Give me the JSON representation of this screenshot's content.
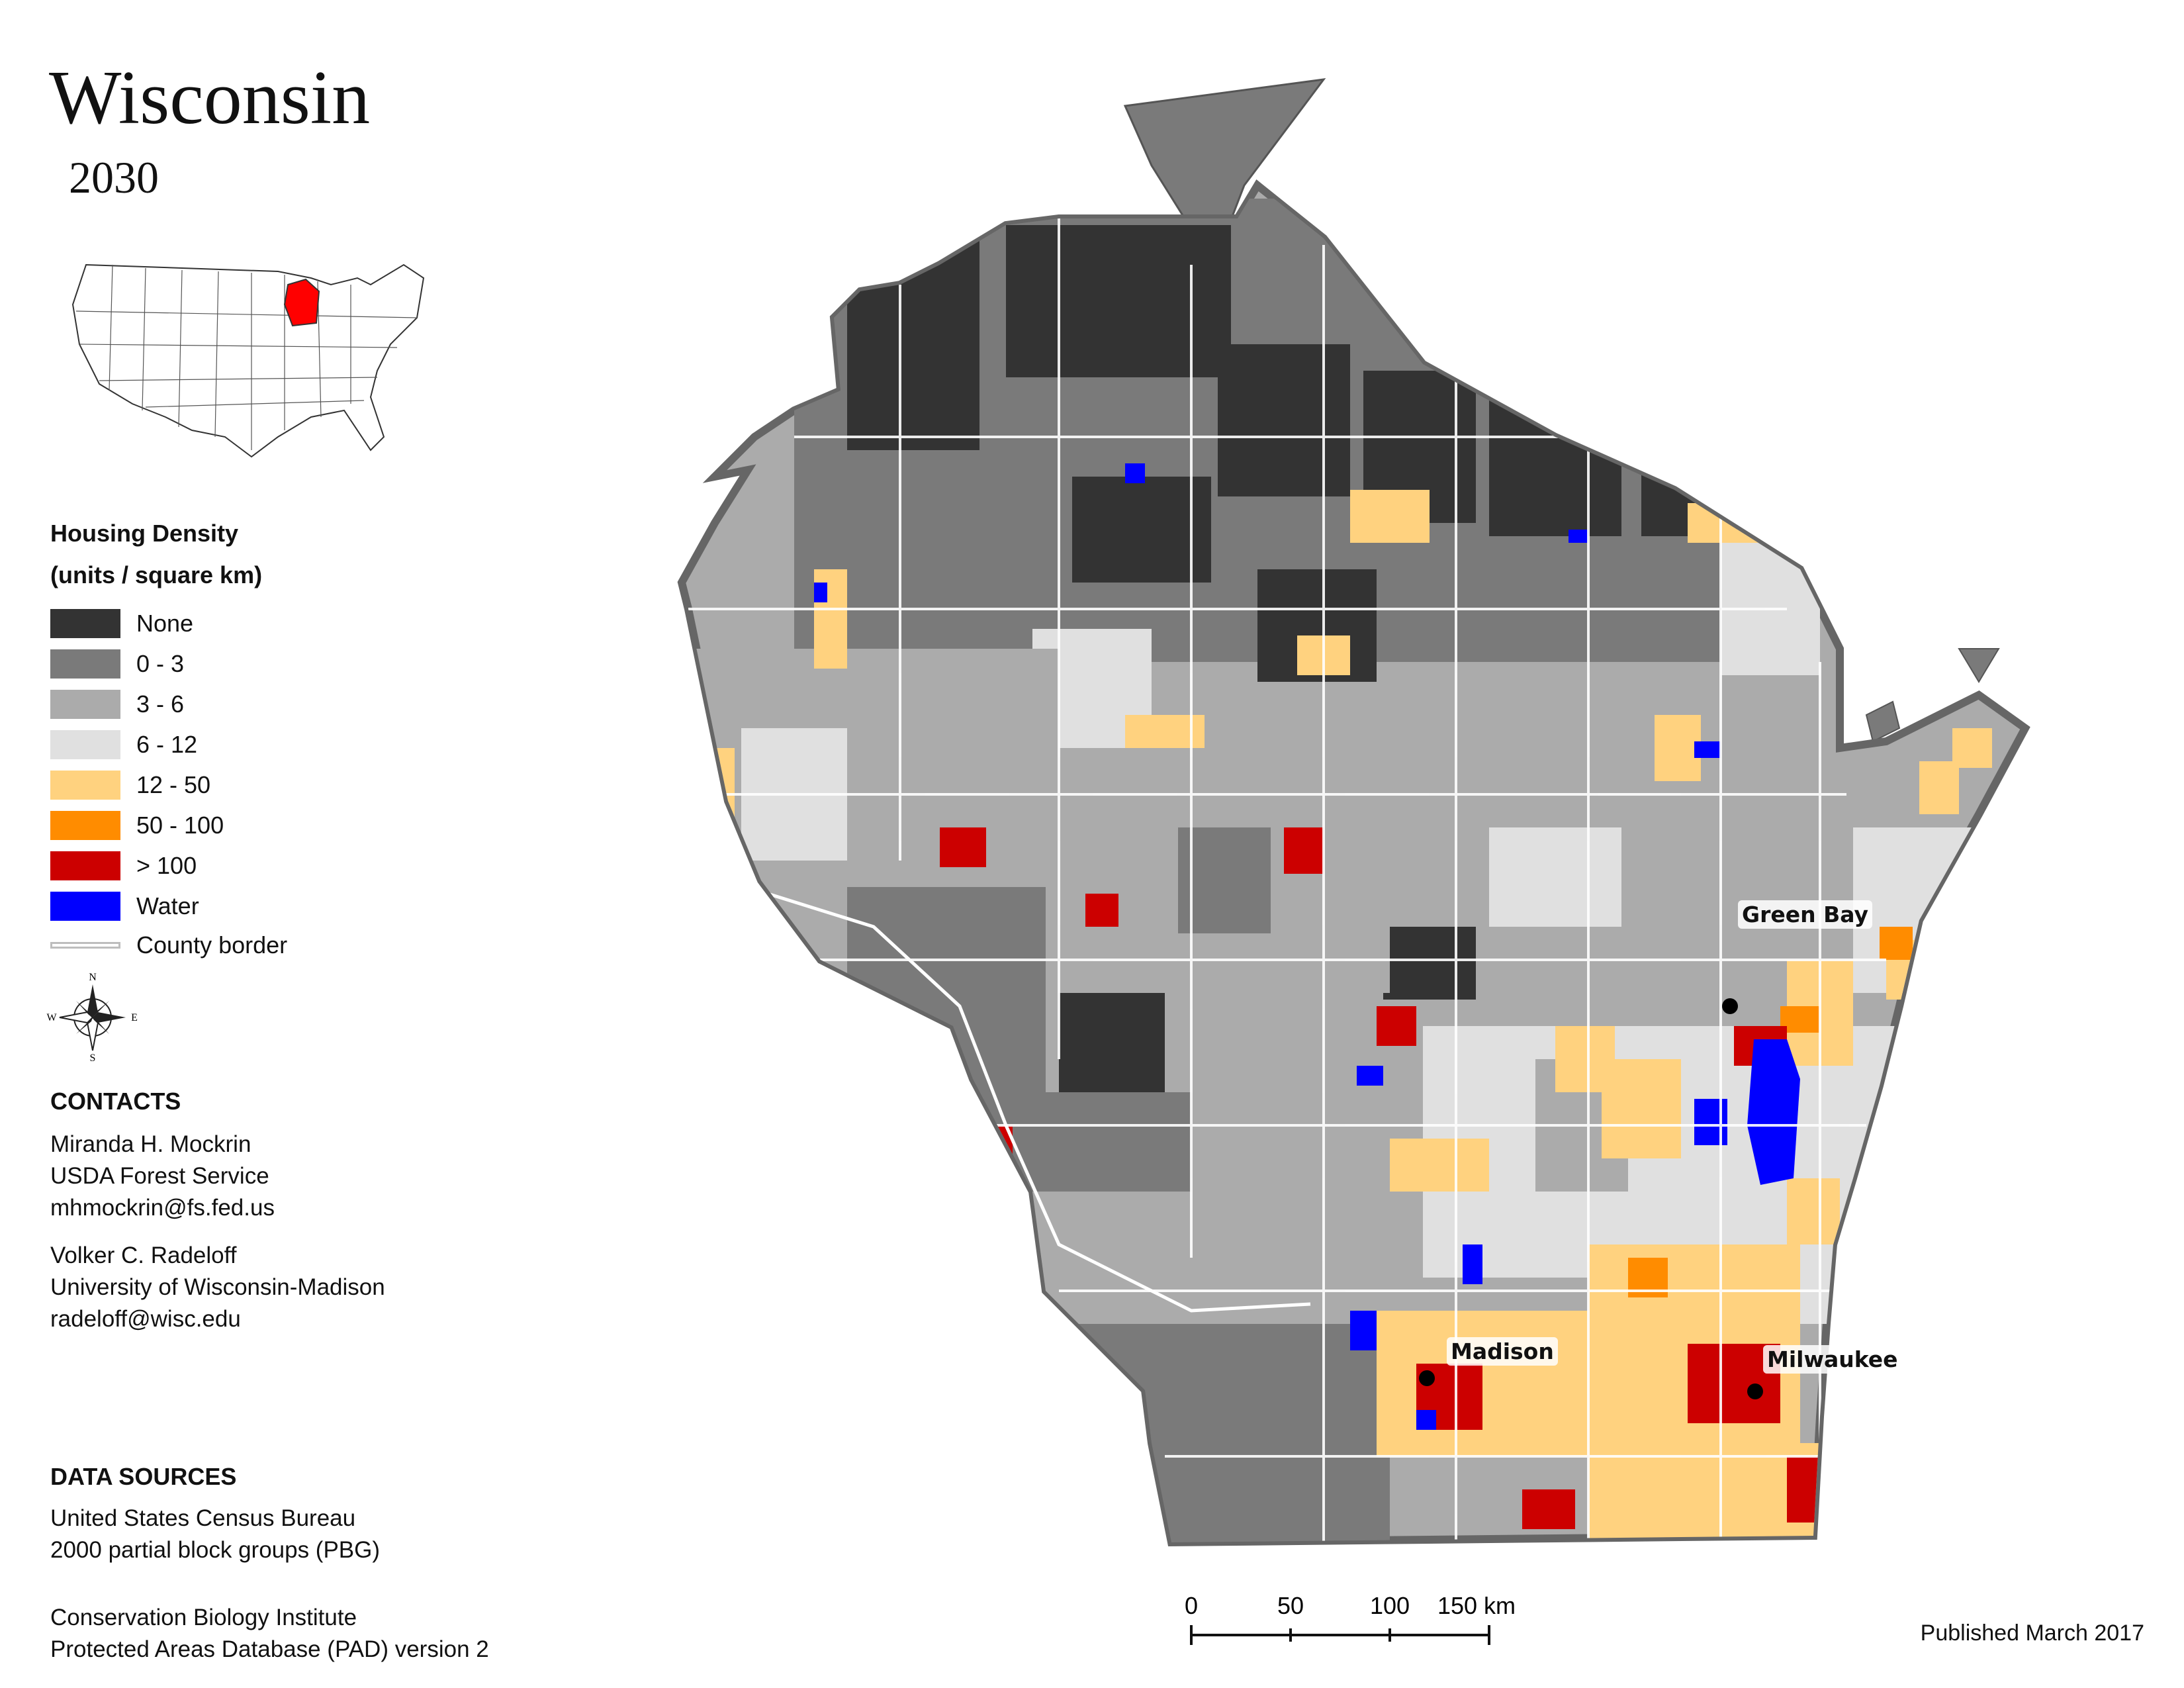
{
  "title": "Wisconsin",
  "year": "2030",
  "locator": {
    "highlight_color": "#ff0000"
  },
  "legend": {
    "title_line1": "Housing Density",
    "title_line2": "(units / square km)",
    "items": [
      {
        "label": "None",
        "color": "#333333"
      },
      {
        "label": "0 - 3",
        "color": "#7a7a7a"
      },
      {
        "label": "3 - 6",
        "color": "#ababab"
      },
      {
        "label": "6 - 12",
        "color": "#e0e0e0"
      },
      {
        "label": "12 - 50",
        "color": "#ffd27f"
      },
      {
        "label": "50 - 100",
        "color": "#ff8c00"
      },
      {
        "label": "> 100",
        "color": "#cc0000"
      },
      {
        "label": "Water",
        "color": "#0000ff"
      }
    ],
    "border_label": "County border"
  },
  "compass": {
    "n": "N",
    "s": "S",
    "e": "E",
    "w": "W"
  },
  "contacts": {
    "heading": "CONTACTS",
    "people": [
      {
        "name": "Miranda H. Mockrin",
        "org": "USDA Forest Service",
        "email": "mhmockrin@fs.fed.us"
      },
      {
        "name": "Volker C. Radeloff",
        "org": "University of Wisconsin-Madison",
        "email": "radeloff@wisc.edu"
      }
    ]
  },
  "data_sources": {
    "heading": "DATA SOURCES",
    "lines": [
      "United States Census Bureau",
      "2000 partial block groups (PBG)",
      "Conservation Biology Institute",
      "Protected Areas Database (PAD) version 2"
    ]
  },
  "cities": [
    {
      "name": "Green Bay"
    },
    {
      "name": "Madison"
    },
    {
      "name": "Milwaukee"
    }
  ],
  "scale": {
    "labels": [
      "0",
      "50",
      "100",
      "150 km"
    ]
  },
  "published": "Published March 2017"
}
